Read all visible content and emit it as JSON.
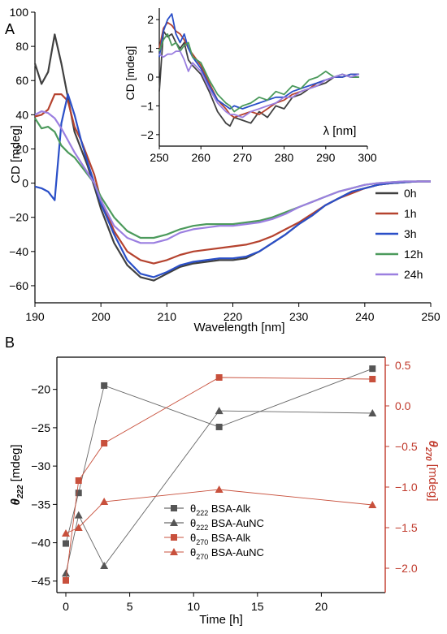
{
  "panel_labels": {
    "a": "A",
    "b": "B"
  },
  "colors": {
    "0h": "#404040",
    "1h": "#b5432f",
    "3h": "#2a4fc8",
    "12h": "#4c9a5c",
    "24h": "#9b7fe0",
    "alk_black": "#555555",
    "red_axis": "#c0392b",
    "red_series": "#c8503c"
  },
  "chart_data": [
    {
      "type": "line",
      "title": "",
      "xlabel": "Wavelength [nm]",
      "ylabel": "CD [mdeg]",
      "xlim": [
        190,
        250
      ],
      "ylim": [
        -70,
        100
      ],
      "xticks": [
        "190",
        "200",
        "210",
        "220",
        "230",
        "240",
        "250"
      ],
      "yticks": [
        "-60",
        "-40",
        "-20",
        "0",
        "20",
        "40",
        "60",
        "80",
        "100"
      ],
      "legend_position": "right",
      "series": [
        {
          "name": "0h",
          "x": [
            190,
            191,
            192,
            193,
            194,
            195,
            196,
            197,
            198,
            199,
            200,
            202,
            204,
            206,
            208,
            210,
            212,
            214,
            216,
            218,
            220,
            222,
            224,
            226,
            228,
            230,
            232,
            234,
            236,
            238,
            240,
            242,
            244,
            246,
            248,
            250
          ],
          "y": [
            70,
            58,
            65,
            87,
            70,
            50,
            30,
            20,
            10,
            -2,
            -15,
            -35,
            -48,
            -55,
            -57,
            -53,
            -49,
            -47,
            -46,
            -45,
            -45,
            -44,
            -40,
            -35,
            -30,
            -24,
            -19,
            -13,
            -9,
            -5,
            -3,
            -1,
            0,
            0.5,
            1,
            1
          ]
        },
        {
          "name": "1h",
          "x": [
            190,
            191,
            192,
            193,
            194,
            195,
            196,
            197,
            198,
            199,
            200,
            202,
            204,
            206,
            208,
            210,
            212,
            214,
            216,
            218,
            220,
            222,
            224,
            226,
            228,
            230,
            232,
            234,
            236,
            238,
            240,
            242,
            244,
            246,
            248,
            250
          ],
          "y": [
            39,
            40,
            43,
            52,
            52,
            48,
            33,
            25,
            15,
            5,
            -10,
            -28,
            -40,
            -45,
            -47,
            -45,
            -42,
            -40,
            -39,
            -38,
            -37,
            -36,
            -34,
            -31,
            -27,
            -23,
            -18,
            -13,
            -9,
            -6,
            -3,
            -1,
            0,
            0.5,
            1,
            1
          ]
        },
        {
          "name": "3h",
          "x": [
            190,
            191,
            192,
            193,
            194,
            195,
            196,
            197,
            198,
            199,
            200,
            202,
            204,
            206,
            208,
            210,
            212,
            214,
            216,
            218,
            220,
            222,
            224,
            226,
            228,
            230,
            232,
            234,
            236,
            238,
            240,
            242,
            244,
            246,
            248,
            250
          ],
          "y": [
            -2,
            -3,
            -5,
            -10,
            35,
            52,
            40,
            25,
            12,
            0,
            -12,
            -30,
            -45,
            -53,
            -55,
            -52,
            -48,
            -46,
            -45,
            -44,
            -44,
            -43,
            -40,
            -35,
            -30,
            -24,
            -19,
            -13,
            -9,
            -5,
            -3,
            -1,
            0,
            0.5,
            1,
            1
          ]
        },
        {
          "name": "12h",
          "x": [
            190,
            191,
            192,
            193,
            194,
            195,
            196,
            197,
            198,
            199,
            200,
            202,
            204,
            206,
            208,
            210,
            212,
            214,
            216,
            218,
            220,
            222,
            224,
            226,
            228,
            230,
            232,
            234,
            236,
            238,
            240,
            242,
            244,
            246,
            248,
            250
          ],
          "y": [
            38,
            32,
            33,
            30,
            22,
            18,
            15,
            10,
            5,
            0,
            -8,
            -20,
            -28,
            -32,
            -32,
            -30,
            -27,
            -25,
            -24,
            -24,
            -24,
            -23,
            -22,
            -20,
            -17,
            -14,
            -11,
            -8,
            -5,
            -3,
            -1,
            0,
            0.5,
            1,
            1,
            1
          ]
        },
        {
          "name": "24h",
          "x": [
            190,
            191,
            192,
            193,
            194,
            195,
            196,
            197,
            198,
            199,
            200,
            202,
            204,
            206,
            208,
            210,
            212,
            214,
            216,
            218,
            220,
            222,
            224,
            226,
            228,
            230,
            232,
            234,
            236,
            238,
            240,
            242,
            244,
            246,
            248,
            250
          ],
          "y": [
            40,
            42,
            41,
            38,
            32,
            25,
            18,
            12,
            6,
            0,
            -10,
            -25,
            -32,
            -35,
            -35,
            -33,
            -29,
            -27,
            -26,
            -25,
            -25,
            -24,
            -23,
            -21,
            -18,
            -14,
            -11,
            -8,
            -5,
            -3,
            -1,
            0,
            0.5,
            1,
            1,
            1
          ]
        }
      ]
    },
    {
      "type": "line",
      "title": "",
      "xlabel": "λ [nm]",
      "ylabel": "CD [mdeg]",
      "xlim": [
        250,
        300
      ],
      "ylim": [
        -2.4,
        2.4
      ],
      "xticks": [
        "250",
        "260",
        "270",
        "280",
        "290",
        "300"
      ],
      "yticks": [
        "-2",
        "-1",
        "0",
        "1",
        "2"
      ],
      "series": [
        {
          "name": "0h",
          "x": [
            250,
            251,
            252,
            253,
            254,
            255,
            256,
            257,
            258,
            260,
            262,
            264,
            266,
            267,
            268,
            270,
            272,
            274,
            276,
            278,
            280,
            282,
            284,
            286,
            288,
            290,
            292,
            294,
            296,
            298
          ],
          "y": [
            -0.5,
            1.6,
            1.4,
            1.5,
            1.2,
            1.0,
            1.2,
            0.6,
            0.4,
            0.1,
            -0.5,
            -1.2,
            -1.6,
            -1.7,
            -1.4,
            -1.5,
            -1.6,
            -1.2,
            -1.4,
            -1.0,
            -1.1,
            -0.7,
            -0.6,
            -0.4,
            -0.3,
            -0.2,
            0.0,
            0.1,
            0.0,
            0.0
          ]
        },
        {
          "name": "1h",
          "x": [
            250,
            251,
            252,
            253,
            254,
            255,
            256,
            257,
            258,
            260,
            262,
            264,
            266,
            267,
            268,
            270,
            272,
            274,
            276,
            278,
            280,
            282,
            284,
            286,
            288,
            290,
            292,
            294,
            296,
            298
          ],
          "y": [
            1.0,
            1.7,
            1.9,
            1.8,
            1.6,
            1.5,
            1.3,
            1.0,
            0.8,
            0.4,
            -0.2,
            -0.8,
            -1.1,
            -1.3,
            -1.4,
            -1.3,
            -1.2,
            -1.3,
            -1.1,
            -0.9,
            -0.8,
            -0.6,
            -0.5,
            -0.4,
            -0.2,
            -0.1,
            0.0,
            0.0,
            0.1,
            0.1
          ]
        },
        {
          "name": "3h",
          "x": [
            250,
            251,
            252,
            253,
            254,
            255,
            256,
            257,
            258,
            260,
            262,
            264,
            266,
            267,
            268,
            270,
            272,
            274,
            276,
            278,
            280,
            282,
            284,
            286,
            288,
            290,
            292,
            294,
            296,
            298
          ],
          "y": [
            0.7,
            1.6,
            2.0,
            2.2,
            1.5,
            1.2,
            1.5,
            1.0,
            0.7,
            0.3,
            -0.3,
            -0.8,
            -1.0,
            -1.1,
            -1.0,
            -1.1,
            -1.0,
            -0.9,
            -0.8,
            -0.7,
            -0.7,
            -0.5,
            -0.4,
            -0.3,
            -0.2,
            -0.1,
            0.0,
            0.0,
            0.1,
            0.1
          ]
        },
        {
          "name": "12h",
          "x": [
            250,
            251,
            252,
            253,
            254,
            255,
            256,
            257,
            258,
            260,
            262,
            264,
            266,
            267,
            268,
            270,
            272,
            274,
            276,
            278,
            280,
            282,
            284,
            286,
            288,
            290,
            292,
            294,
            296,
            298
          ],
          "y": [
            0.9,
            1.3,
            1.5,
            1.1,
            1.2,
            0.9,
            1.1,
            1.2,
            0.7,
            0.5,
            -0.1,
            -0.6,
            -0.9,
            -1.0,
            -1.2,
            -1.0,
            -0.9,
            -0.7,
            -0.8,
            -0.5,
            -0.6,
            -0.3,
            -0.4,
            -0.1,
            0.0,
            0.2,
            0.0,
            0.1,
            0.0,
            0.0
          ]
        },
        {
          "name": "24h",
          "x": [
            250,
            251,
            252,
            253,
            254,
            255,
            256,
            257,
            258,
            260,
            262,
            264,
            266,
            267,
            268,
            270,
            272,
            274,
            276,
            278,
            280,
            282,
            284,
            286,
            288,
            290,
            292,
            294,
            296,
            298
          ],
          "y": [
            0.8,
            0.7,
            0.8,
            0.8,
            0.9,
            0.9,
            0.6,
            0.2,
            0.5,
            0.2,
            -0.4,
            -0.9,
            -1.2,
            -1.3,
            -1.3,
            -1.4,
            -1.2,
            -1.1,
            -1.0,
            -0.9,
            -0.7,
            -0.7,
            -0.5,
            -0.4,
            -0.3,
            -0.1,
            0.0,
            0.1,
            0.0,
            0.1
          ]
        }
      ]
    },
    {
      "type": "line",
      "title": "",
      "xlabel": "Time [h]",
      "ylabel": "θ222 [mdeg]",
      "ylabel_right": "θ270 [mdeg]",
      "xlim": [
        -0.7,
        25
      ],
      "ylim": [
        -46.5,
        -15.8
      ],
      "ylim_right": [
        -2.3,
        0.6
      ],
      "xticks": [
        "0",
        "5",
        "10",
        "15",
        "20"
      ],
      "yticks": [
        "-45",
        "-40",
        "-35",
        "-30",
        "-25",
        "-20"
      ],
      "yticks_right": [
        "-2.0",
        "-1.5",
        "-1.0",
        "-0.5",
        "0.0",
        "0.5"
      ],
      "legend_position": "lower-center",
      "series": [
        {
          "name": "θ222 BSA-Alk",
          "sym": "θ",
          "sub": "222",
          "rest": " BSA-Alk",
          "marker": "square",
          "axis": "left",
          "x": [
            0,
            1,
            3,
            12,
            24
          ],
          "y": [
            -40.1,
            -33.5,
            -19.5,
            -24.9,
            -17.3
          ]
        },
        {
          "name": "θ222 BSA-AuNC",
          "sym": "θ",
          "sub": "222",
          "rest": " BSA-AuNC",
          "marker": "triangle",
          "axis": "left",
          "x": [
            0,
            1,
            3,
            12,
            24
          ],
          "y": [
            -44.0,
            -36.4,
            -43.0,
            -22.8,
            -23.1
          ]
        },
        {
          "name": "θ270 BSA-Alk",
          "sym": "θ",
          "sub": "270",
          "rest": " BSA-Alk",
          "marker": "square",
          "axis": "right",
          "x": [
            0,
            1,
            3,
            12,
            24
          ],
          "y": [
            -2.15,
            -0.92,
            -0.46,
            0.35,
            0.33
          ]
        },
        {
          "name": "θ270 BSA-AuNC",
          "sym": "θ",
          "sub": "270",
          "rest": " BSA-AuNC",
          "marker": "triangle",
          "axis": "right",
          "x": [
            0,
            1,
            3,
            12,
            24
          ],
          "y": [
            -1.57,
            -1.5,
            -1.18,
            -1.03,
            -1.22
          ]
        }
      ]
    }
  ]
}
